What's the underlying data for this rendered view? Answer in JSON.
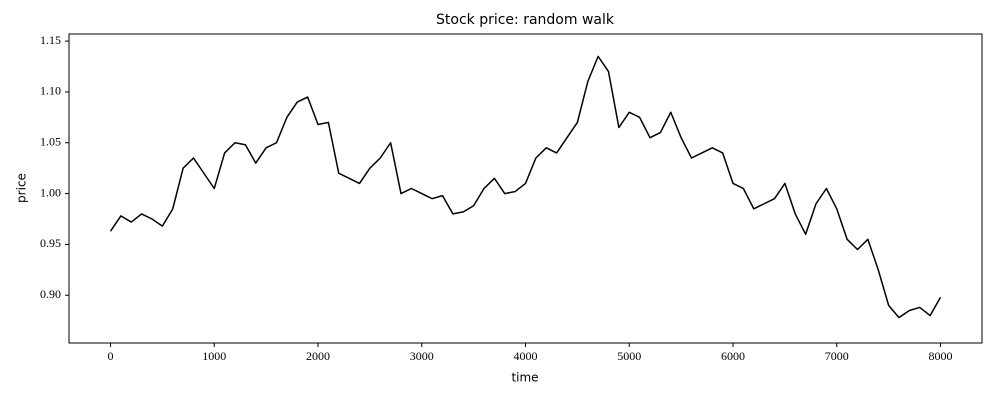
{
  "chart_data": {
    "type": "line",
    "title": "Stock price: random walk",
    "x_label": "time",
    "y_label": "price",
    "x": [
      0,
      100,
      200,
      300,
      400,
      500,
      600,
      700,
      800,
      900,
      1000,
      1100,
      1200,
      1300,
      1400,
      1500,
      1600,
      1700,
      1800,
      1900,
      2000,
      2100,
      2200,
      2300,
      2400,
      2500,
      2600,
      2700,
      2800,
      2900,
      3000,
      3100,
      3200,
      3300,
      3400,
      3500,
      3600,
      3700,
      3800,
      3900,
      4000,
      4100,
      4200,
      4300,
      4400,
      4500,
      4600,
      4700,
      4800,
      4900,
      5000,
      5100,
      5200,
      5300,
      5400,
      5500,
      5600,
      5700,
      5800,
      5900,
      6000,
      6100,
      6200,
      6300,
      6400,
      6500,
      6600,
      6700,
      6800,
      6900,
      7000,
      7100,
      7200,
      7300,
      7400,
      7500,
      7600,
      7700,
      7800,
      7900,
      8000
    ],
    "values": [
      0.963,
      0.978,
      0.972,
      0.98,
      0.975,
      0.968,
      0.985,
      1.025,
      1.035,
      1.02,
      1.005,
      1.04,
      1.05,
      1.048,
      1.03,
      1.045,
      1.05,
      1.075,
      1.09,
      1.095,
      1.068,
      1.07,
      1.02,
      1.015,
      1.01,
      1.025,
      1.035,
      1.05,
      1.0,
      1.005,
      1.0,
      0.995,
      0.998,
      0.98,
      0.982,
      0.988,
      1.005,
      1.015,
      1.0,
      1.002,
      1.01,
      1.035,
      1.045,
      1.04,
      1.055,
      1.07,
      1.11,
      1.135,
      1.12,
      1.065,
      1.08,
      1.075,
      1.055,
      1.06,
      1.08,
      1.055,
      1.035,
      1.04,
      1.045,
      1.04,
      1.01,
      1.005,
      0.985,
      0.99,
      0.995,
      1.01,
      0.98,
      0.96,
      0.99,
      1.005,
      0.985,
      0.955,
      0.945,
      0.955,
      0.925,
      0.89,
      0.878,
      0.885,
      0.888,
      0.88,
      0.898
    ],
    "color": "#000000",
    "xlim": [
      -400,
      8400
    ],
    "ylim": [
      0.853,
      1.157
    ],
    "xticks": [
      0,
      1000,
      2000,
      3000,
      4000,
      5000,
      6000,
      7000,
      8000
    ],
    "yticks": [
      {
        "value": 0.9,
        "label": "0.90"
      },
      0.95,
      {
        "value": 1.0,
        "label": "1.00"
      },
      1.05,
      {
        "value": 1.1,
        "label": "1.10"
      },
      1.15
    ]
  }
}
